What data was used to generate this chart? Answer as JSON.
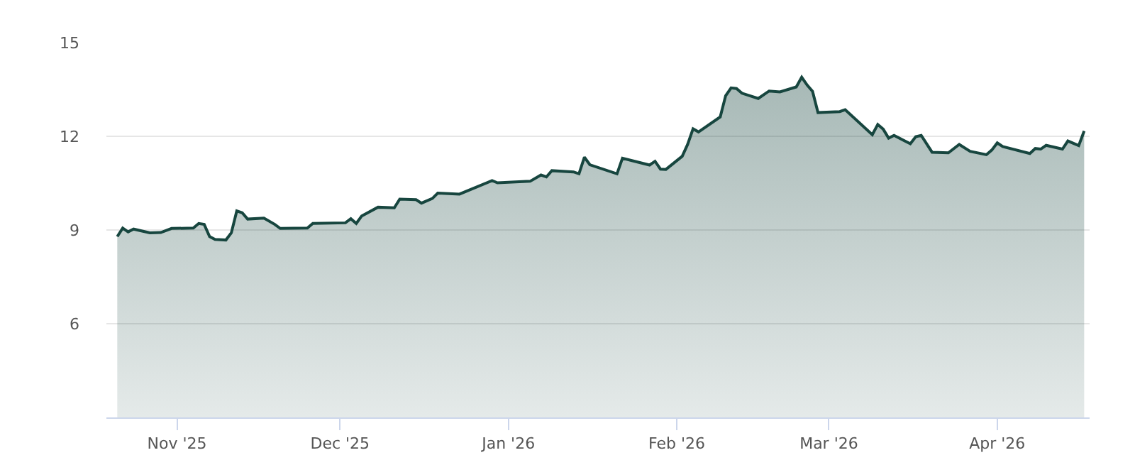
{
  "chart_data": {
    "type": "area",
    "x": [
      "2025-10-21",
      "2025-10-22",
      "2025-10-23",
      "2025-10-24",
      "2025-10-27",
      "2025-10-29",
      "2025-10-31",
      "2025-11-04",
      "2025-11-05",
      "2025-11-06",
      "2025-11-07",
      "2025-11-08",
      "2025-11-10",
      "2025-11-11",
      "2025-11-12",
      "2025-11-13",
      "2025-11-14",
      "2025-11-17",
      "2025-11-19",
      "2025-11-20",
      "2025-11-25",
      "2025-11-26",
      "2025-12-02",
      "2025-12-03",
      "2025-12-04",
      "2025-12-05",
      "2025-12-08",
      "2025-12-11",
      "2025-12-12",
      "2025-12-15",
      "2025-12-16",
      "2025-12-18",
      "2025-12-19",
      "2025-12-23",
      "2025-12-29",
      "2025-12-30",
      "2026-01-05",
      "2026-01-07",
      "2026-01-08",
      "2026-01-09",
      "2026-01-13",
      "2026-01-14",
      "2026-01-15",
      "2026-01-16",
      "2026-01-21",
      "2026-01-22",
      "2026-01-24",
      "2026-01-27",
      "2026-01-28",
      "2026-01-29",
      "2026-01-30",
      "2026-02-02",
      "2026-02-03",
      "2026-02-04",
      "2026-02-05",
      "2026-02-09",
      "2026-02-10",
      "2026-02-11",
      "2026-02-12",
      "2026-02-13",
      "2026-02-16",
      "2026-02-18",
      "2026-02-20",
      "2026-02-23",
      "2026-02-24",
      "2026-02-25",
      "2026-02-26",
      "2026-02-27",
      "2026-03-03",
      "2026-03-04",
      "2026-03-09",
      "2026-03-10",
      "2026-03-11",
      "2026-03-12",
      "2026-03-13",
      "2026-03-16",
      "2026-03-17",
      "2026-03-18",
      "2026-03-20",
      "2026-03-23",
      "2026-03-25",
      "2026-03-27",
      "2026-03-30",
      "2026-03-31",
      "2026-04-01",
      "2026-04-02",
      "2026-04-07",
      "2026-04-08",
      "2026-04-09",
      "2026-04-10",
      "2026-04-13",
      "2026-04-14",
      "2026-04-16",
      "2026-04-17"
    ],
    "series": [
      {
        "color": "#17463f",
        "values": [
          8.79,
          9.06,
          8.94,
          9.03,
          8.91,
          8.92,
          9.05,
          9.06,
          9.21,
          9.18,
          8.79,
          8.7,
          8.68,
          8.91,
          9.61,
          9.55,
          9.35,
          9.38,
          9.18,
          9.05,
          9.06,
          9.21,
          9.23,
          9.36,
          9.21,
          9.45,
          9.73,
          9.71,
          9.99,
          9.97,
          9.86,
          10.01,
          10.18,
          10.15,
          10.58,
          10.51,
          10.56,
          10.76,
          10.7,
          10.9,
          10.86,
          10.8,
          11.33,
          11.09,
          10.8,
          11.3,
          11.21,
          11.08,
          11.2,
          10.95,
          10.94,
          11.36,
          11.74,
          12.24,
          12.14,
          12.62,
          13.3,
          13.55,
          13.53,
          13.38,
          13.21,
          13.45,
          13.42,
          13.58,
          13.89,
          13.64,
          13.44,
          12.76,
          12.79,
          12.85,
          12.05,
          12.38,
          12.23,
          11.94,
          12.03,
          11.76,
          11.99,
          12.03,
          11.49,
          11.47,
          11.74,
          11.52,
          11.41,
          11.56,
          11.79,
          11.67,
          11.45,
          11.61,
          11.59,
          11.71,
          11.59,
          11.85,
          11.7,
          12.17
        ]
      }
    ],
    "xlim": [
      "2025-10-19",
      "2026-04-18"
    ],
    "xticks": [
      {
        "value": "2025-11-01",
        "label": "Nov '25"
      },
      {
        "value": "2025-12-01",
        "label": "Dec '25"
      },
      {
        "value": "2026-01-01",
        "label": "Jan '26"
      },
      {
        "value": "2026-02-01",
        "label": "Feb '26"
      },
      {
        "value": "2026-03-01",
        "label": "Mar '26"
      },
      {
        "value": "2026-04-01",
        "label": "Apr '26"
      }
    ],
    "ylim": [
      3,
      15
    ],
    "yticks": [
      6,
      9,
      12,
      15
    ],
    "grid": "y"
  }
}
